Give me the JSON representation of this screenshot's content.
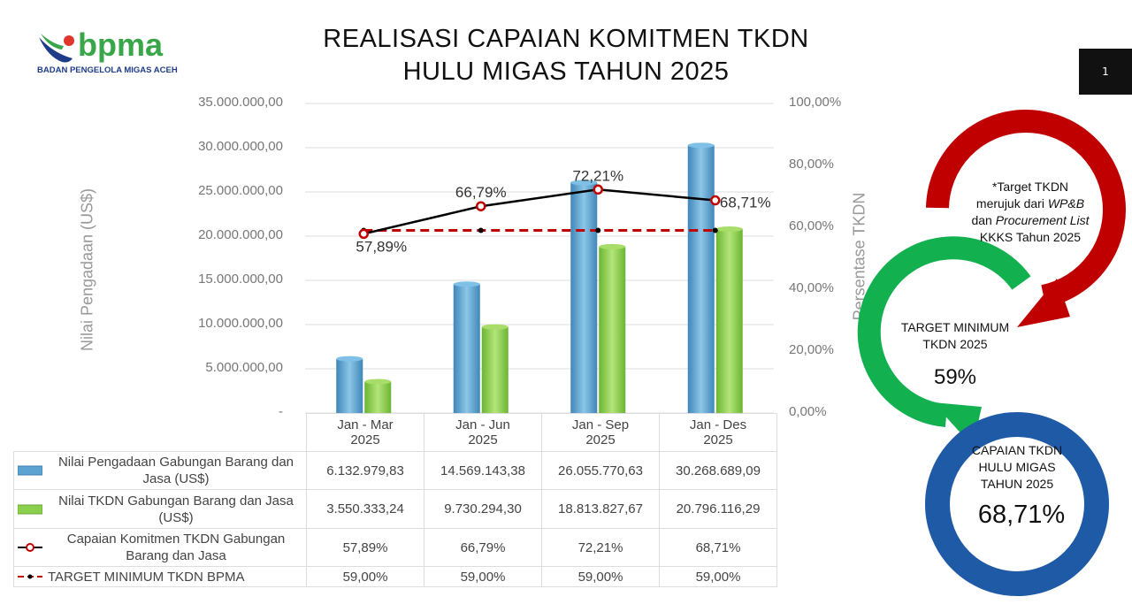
{
  "logo": {
    "name": "bpma",
    "subtitle": "BADAN PENGELOLA MIGAS ACEH"
  },
  "title_line1": "REALISASI CAPAIAN KOMITMEN TKDN",
  "title_line2": "HULU MIGAS TAHUN 2025",
  "page_number": "1",
  "chart_data": {
    "type": "bar+line",
    "categories": [
      [
        "Jan - Mar",
        "2025"
      ],
      [
        "Jan - Jun",
        "2025"
      ],
      [
        "Jan - Sep",
        "2025"
      ],
      [
        "Jan - Des",
        "2025"
      ]
    ],
    "ylabel": "Nilai Pengadaan (US$)",
    "y2label": "Persentase TKDN",
    "ylim": [
      0,
      35000000
    ],
    "y2lim": [
      0,
      100
    ],
    "yticks": [
      "-",
      "5.000.000,00",
      "10.000.000,00",
      "15.000.000,00",
      "20.000.000,00",
      "25.000.000,00",
      "30.000.000,00",
      "35.000.000,00"
    ],
    "y2ticks": [
      "0,00%",
      "20,00%",
      "40,00%",
      "60,00%",
      "80,00%",
      "100,00%"
    ],
    "grid": true,
    "series": [
      {
        "name": "Nilai Pengadaan Gabungan Barang dan Jasa (US$)",
        "type": "bar",
        "axis": "left",
        "color": "#5ba3d0",
        "values": [
          6132979.83,
          14569143.38,
          26055770.63,
          30268689.09
        ],
        "labels": [
          "6.132.979,83",
          "14.569.143,38",
          "26.055.770,63",
          "30.268.689,09"
        ]
      },
      {
        "name": "Nilai TKDN Gabungan Barang dan Jasa (US$)",
        "type": "bar",
        "axis": "left",
        "color": "#8ccf4d",
        "values": [
          3550333.24,
          9730294.3,
          18813827.67,
          20796116.29
        ],
        "labels": [
          "3.550.333,24",
          "9.730.294,30",
          "18.813.827,67",
          "20.796.116,29"
        ]
      },
      {
        "name": "Capaian Komitmen TKDN Gabungan Barang dan Jasa",
        "type": "line",
        "axis": "right",
        "color": "#000000",
        "marker_color": "#c00000",
        "values": [
          57.89,
          66.79,
          72.21,
          68.71
        ],
        "labels": [
          "57,89%",
          "66,79%",
          "72,21%",
          "68,71%"
        ]
      },
      {
        "name": "TARGET MINIMUM TKDN BPMA",
        "type": "line-dashed",
        "axis": "right",
        "color": "#c00000",
        "values": [
          59,
          59,
          59,
          59
        ],
        "labels": [
          "59,00%",
          "59,00%",
          "59,00%",
          "59,00%"
        ]
      }
    ]
  },
  "side": {
    "note": [
      "*Target TKDN",
      "merujuk dari ",
      "WP&B",
      "dan ",
      "Procurement List",
      "KKKS Tahun 2025"
    ],
    "target_label": [
      "TARGET MINIMUM",
      "TKDN 2025"
    ],
    "target_value": "59%",
    "capaian_label": [
      "CAPAIAN TKDN",
      "HULU MIGAS",
      "TAHUN 2025"
    ],
    "capaian_value": "68,71%",
    "colors": {
      "red": "#c00000",
      "green": "#12b04f",
      "blue": "#1f5aa6"
    }
  }
}
